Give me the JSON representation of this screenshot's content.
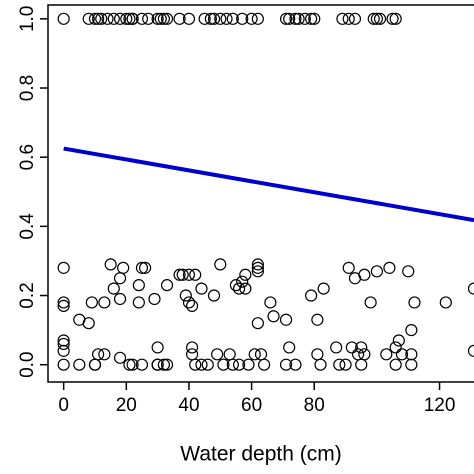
{
  "chart_data": {
    "type": "scatter",
    "x_label": "Water depth (cm)",
    "xlim": [
      -5,
      131
    ],
    "ylim": [
      -0.05,
      1.04
    ],
    "xticks": [
      0,
      20,
      40,
      60,
      80,
      120
    ],
    "yticks": [
      {
        "value": 0,
        "label": "0.0"
      },
      {
        "value": 0.2,
        "label": "0.2"
      },
      {
        "value": 0.4,
        "label": "0.4"
      },
      {
        "value": 0.6,
        "label": "0.6"
      },
      {
        "value": 0.8,
        "label": "0.8"
      },
      {
        "value": 1,
        "label": "1.0"
      }
    ],
    "point_color": "#000000",
    "x": [
      0,
      8,
      10,
      11,
      12,
      14,
      16,
      18,
      20,
      21,
      22,
      22,
      25,
      27,
      30,
      31,
      32,
      33,
      37,
      40,
      45,
      47,
      48,
      50,
      52,
      54,
      57,
      60,
      62,
      71,
      72,
      74,
      75,
      77,
      79,
      80,
      89,
      91,
      93,
      99,
      100,
      101,
      105,
      106,
      0,
      0,
      0,
      0,
      0,
      0,
      0,
      5,
      8,
      9,
      13,
      15,
      16,
      18,
      18,
      19,
      24,
      24,
      25,
      26,
      29,
      33,
      37,
      38,
      39,
      40,
      40,
      41,
      42,
      44,
      48,
      50,
      55,
      56,
      57,
      58,
      58,
      62,
      62,
      62,
      62,
      66,
      67,
      71,
      79,
      81,
      83,
      91,
      93,
      96,
      98,
      100,
      104,
      107,
      110,
      111,
      112,
      122,
      131,
      131,
      11,
      13,
      18,
      30,
      41,
      41,
      49,
      53,
      61,
      63,
      72,
      81,
      87,
      92,
      94,
      95,
      96,
      103,
      106,
      108,
      111,
      5,
      10,
      10,
      21,
      22,
      25,
      30,
      30,
      32,
      33,
      42,
      44,
      46,
      51,
      54,
      56,
      59,
      64,
      71,
      74,
      82,
      88,
      90,
      95,
      106,
      111
    ],
    "values": [
      1,
      1,
      1,
      1,
      1,
      1,
      1,
      1,
      1,
      1,
      1,
      1,
      1,
      1,
      1,
      1,
      1,
      1,
      1,
      1,
      1,
      1,
      1,
      1,
      1,
      1,
      1,
      1,
      1,
      1,
      1,
      1,
      1,
      1,
      1,
      1,
      1,
      1,
      1,
      1,
      1,
      1,
      1,
      1,
      0.28,
      0.18,
      0.17,
      0.07,
      0.06,
      0.04,
      0,
      0.13,
      0.12,
      0.18,
      0.18,
      0.29,
      0.22,
      0.25,
      0.19,
      0.28,
      0.18,
      0.23,
      0.28,
      0.28,
      0.19,
      0.23,
      0.26,
      0.26,
      0.2,
      0.26,
      0.18,
      0.17,
      0.26,
      0.22,
      0.2,
      0.29,
      0.23,
      0.22,
      0.24,
      0.26,
      0.22,
      0.29,
      0.28,
      0.27,
      0.12,
      0.18,
      0.14,
      0.13,
      0.2,
      0.13,
      0.22,
      0.28,
      0.25,
      0.26,
      0.18,
      0.27,
      0.28,
      0.07,
      0.27,
      0.1,
      0.18,
      0.18,
      0.22,
      0.04,
      0.03,
      0.03,
      0.02,
      0.05,
      0.05,
      0.03,
      0.03,
      0.03,
      0.03,
      0.03,
      0.05,
      0.03,
      0.05,
      0.05,
      0.03,
      0.05,
      0.03,
      0.03,
      0.05,
      0.03,
      0.03,
      0,
      0,
      0,
      0,
      0,
      0,
      0,
      0,
      0,
      0,
      0,
      0,
      0,
      0,
      0,
      0,
      0,
      0,
      0,
      0,
      0,
      0,
      0,
      0,
      0,
      0
    ],
    "fit": {
      "color": "#0000cc",
      "x": [
        0,
        131
      ],
      "values": [
        0.625,
        0.418
      ]
    }
  }
}
